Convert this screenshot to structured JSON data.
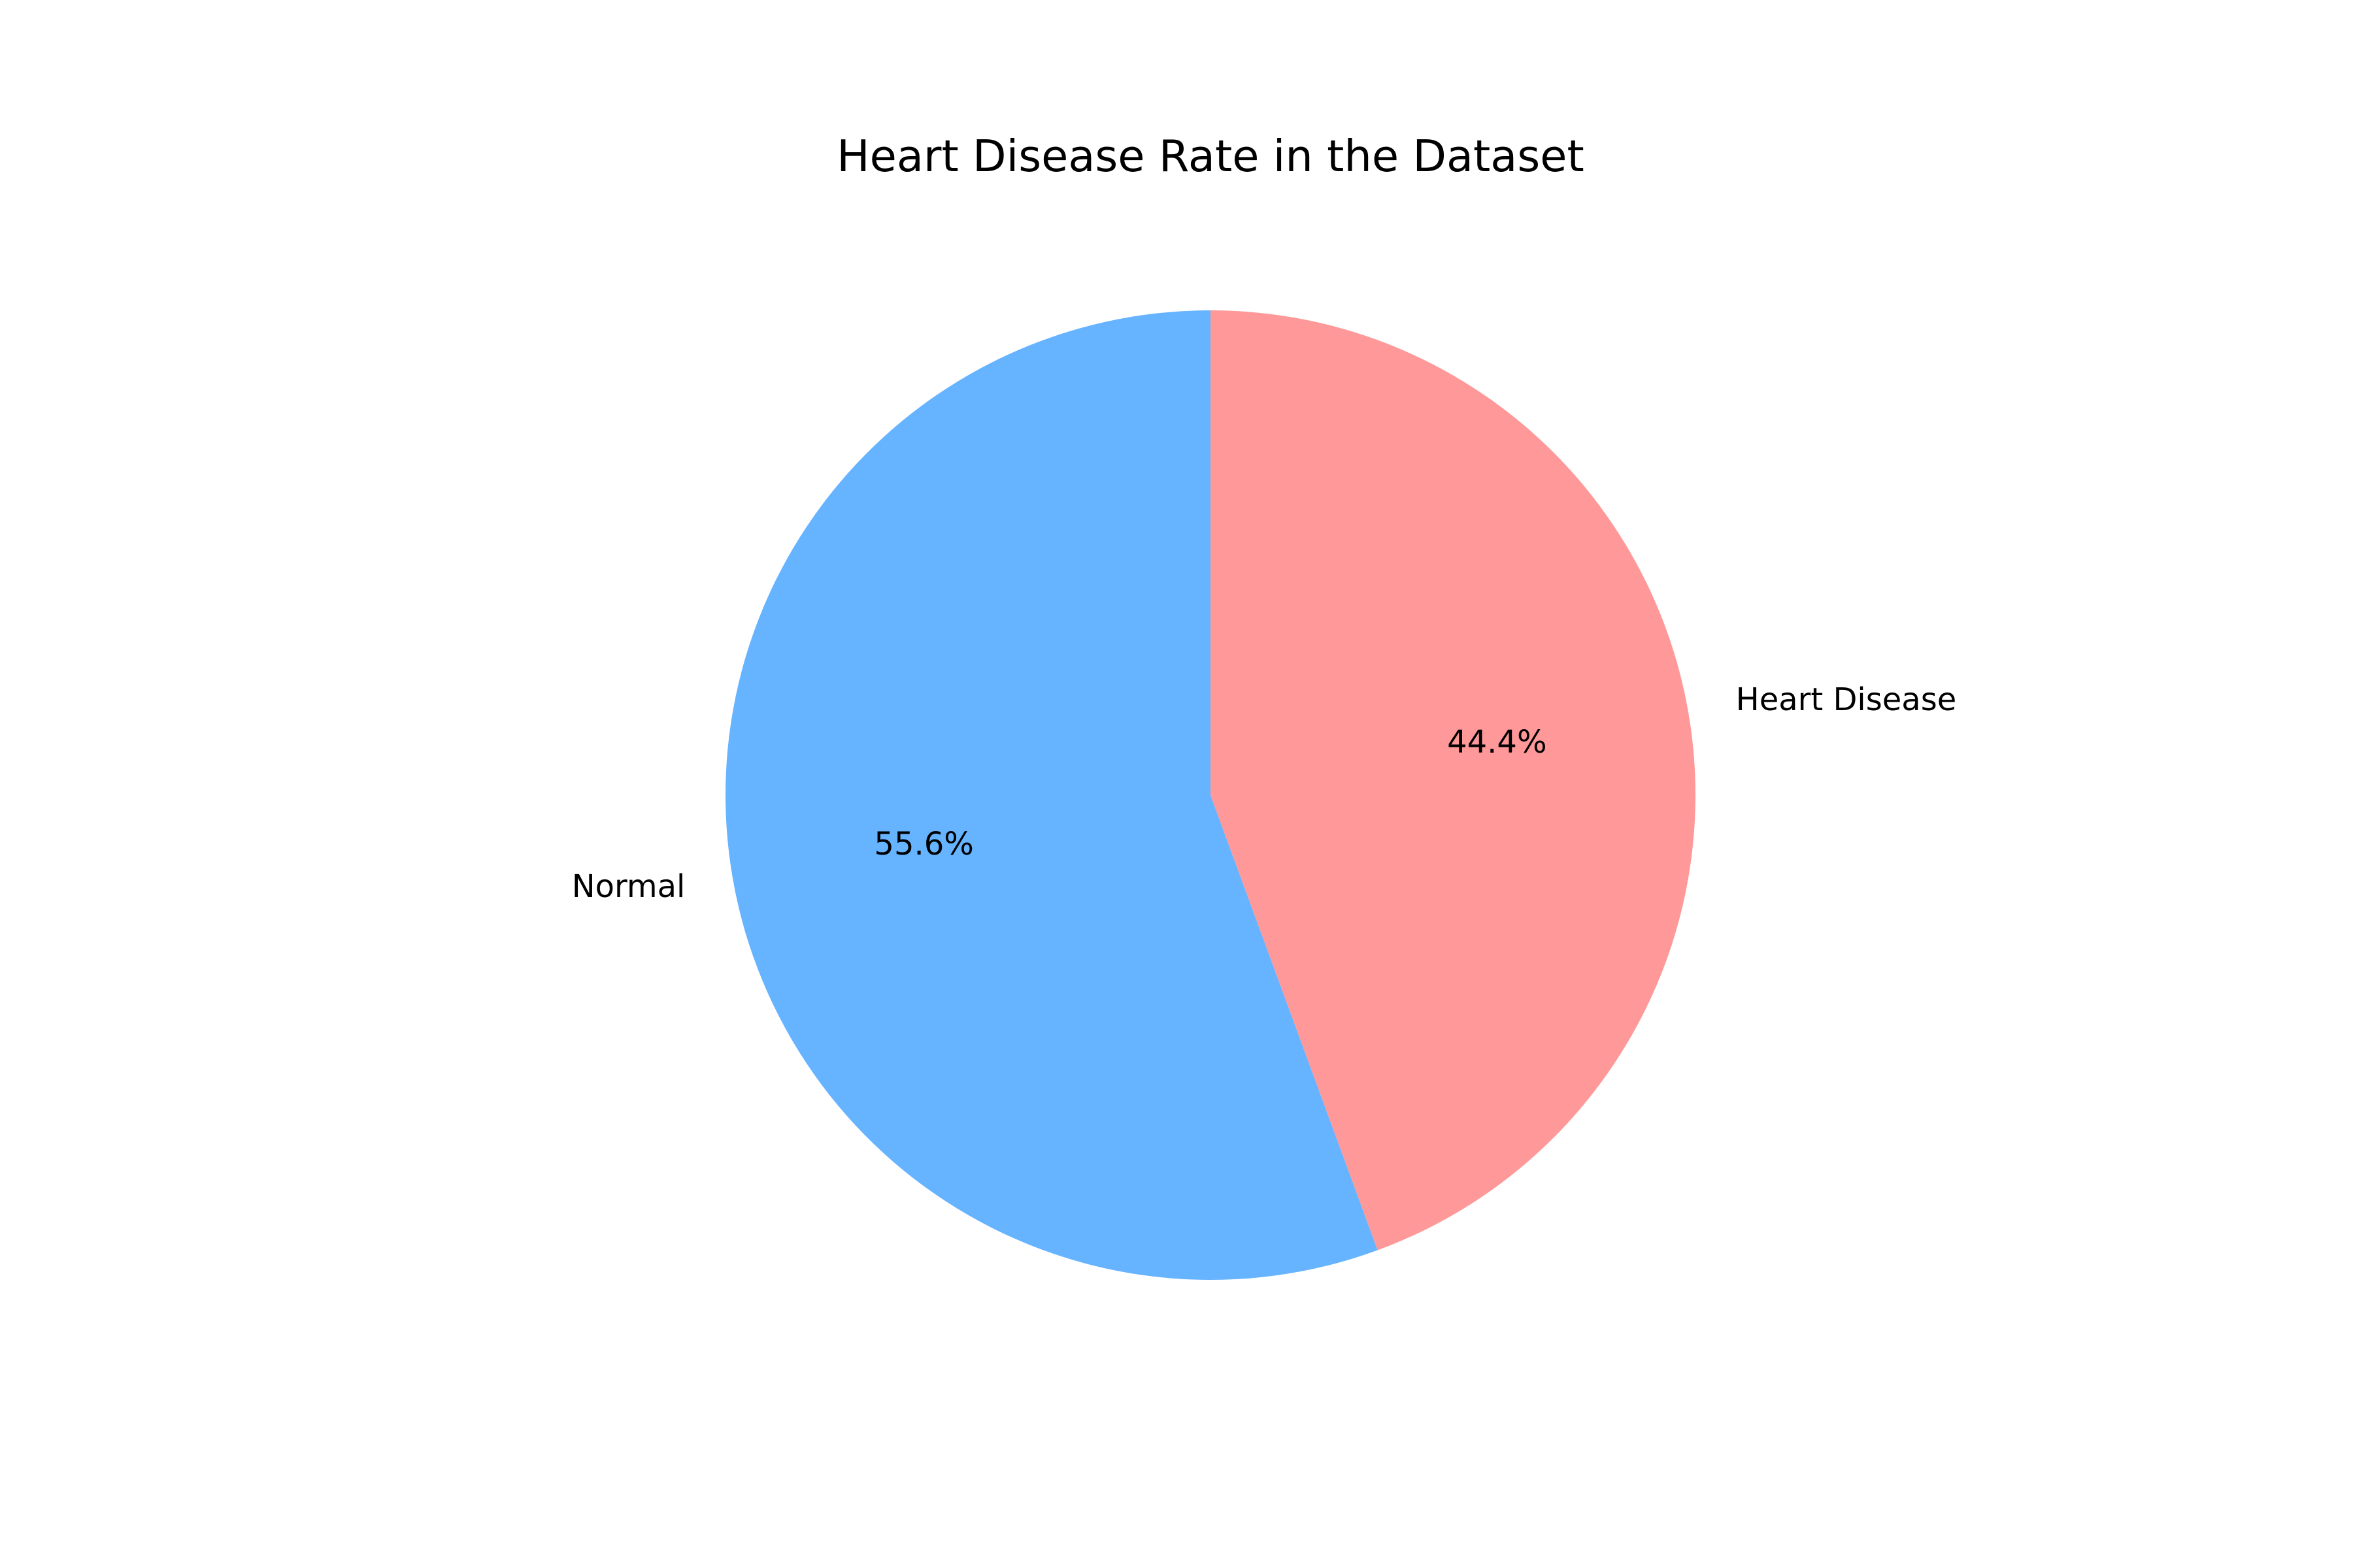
{
  "chart_data": {
    "type": "pie",
    "title": "Heart Disease Rate in the Dataset",
    "labels": [
      "Normal",
      "Heart Disease"
    ],
    "values": [
      55.6,
      44.4
    ],
    "percent_labels": [
      "55.6%",
      "44.4%"
    ],
    "colors": [
      "#66b3ff",
      "#ff9999"
    ],
    "start_angle_deg": 90,
    "direction": "counterclockwise"
  }
}
